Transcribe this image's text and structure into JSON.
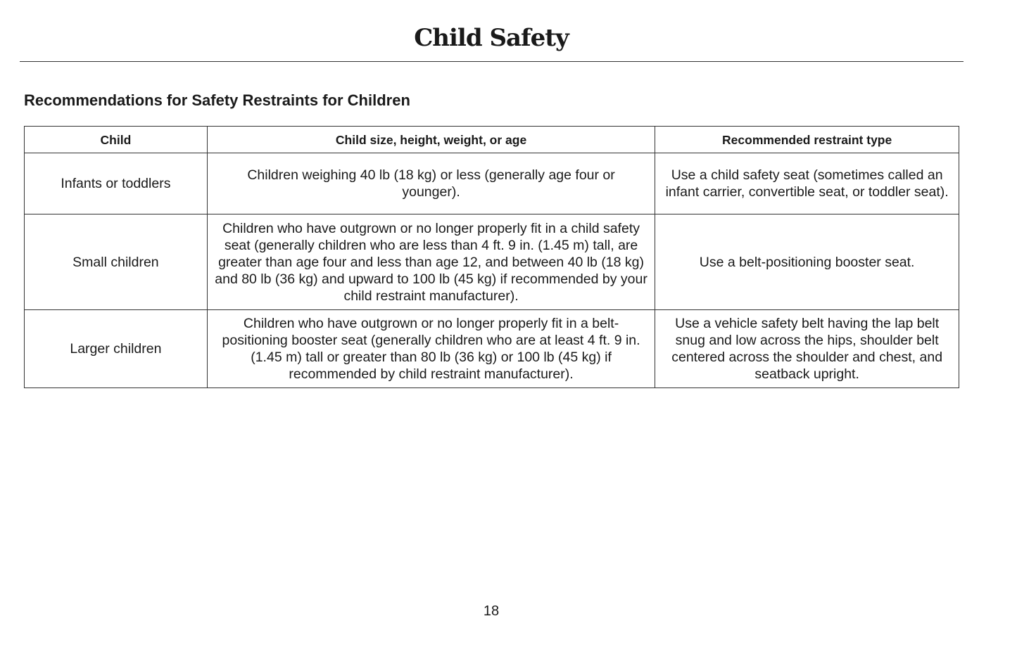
{
  "page_title": "Child Safety",
  "section_heading": "Recommendations for Safety Restraints for Children",
  "table": {
    "headers": [
      "Child",
      "Child size, height, weight, or age",
      "Recommended restraint type"
    ],
    "rows": [
      [
        "Infants or toddlers",
        "Children weighing 40 lb (18 kg) or less (generally age four or younger).",
        "Use a child safety seat (sometimes called an infant carrier, convertible seat, or toddler seat)."
      ],
      [
        "Small children",
        "Children who have outgrown or no longer properly fit in a child safety seat (generally children who are less than 4 ft. 9 in. (1.45 m) tall, are greater than age four and less than age 12, and between 40 lb (18 kg) and 80 lb (36 kg) and upward to 100 lb (45 kg) if recommended by your child restraint manufacturer).",
        "Use a belt-positioning booster seat."
      ],
      [
        "Larger children",
        "Children who have outgrown or no longer properly fit in a belt-positioning booster seat (generally children who are at least 4 ft. 9 in. (1.45 m) tall or greater than 80 lb (36 kg) or 100 lb (45 kg) if recommended by child restraint manufacturer).",
        "Use a vehicle safety belt having the lap belt snug and low across the hips, shoulder belt centered across the shoulder and chest, and seatback upright."
      ]
    ]
  },
  "page_number": "18"
}
